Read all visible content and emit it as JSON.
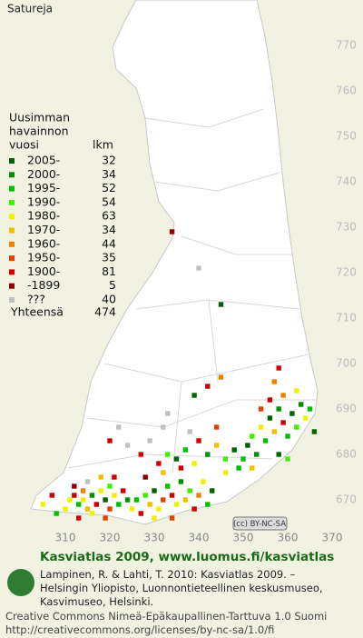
{
  "title": "Satureja",
  "legend": {
    "heading": [
      "Uusimman",
      "havainnon"
    ],
    "col_year": "vuosi",
    "col_count": "lkm",
    "rows": [
      {
        "label": "2005-",
        "count": 32,
        "color": "#006400"
      },
      {
        "label": "2000-",
        "count": 34,
        "color": "#009000"
      },
      {
        "label": "1995-",
        "count": 52,
        "color": "#00c000"
      },
      {
        "label": "1990-",
        "count": 54,
        "color": "#40f000"
      },
      {
        "label": "1980-",
        "count": 63,
        "color": "#f0f000"
      },
      {
        "label": "1970-",
        "count": 34,
        "color": "#f0c000"
      },
      {
        "label": "1960-",
        "count": 44,
        "color": "#f08000"
      },
      {
        "label": "1950-",
        "count": 35,
        "color": "#e04000"
      },
      {
        "label": "1900-",
        "count": 81,
        "color": "#d00000"
      },
      {
        "label": "-1899",
        "count": 5,
        "color": "#900000"
      },
      {
        "label": "???",
        "count": 40,
        "color": "#c0c0c0"
      }
    ],
    "total_label": "Yhteensä",
    "total": 474
  },
  "xticks": [
    310,
    320,
    330,
    340,
    350,
    360,
    370
  ],
  "yticks": [
    770,
    760,
    750,
    740,
    730,
    720,
    710,
    700,
    690,
    680,
    670
  ],
  "squares": [
    [
      305,
      669,
      4
    ],
    [
      307,
      671,
      8
    ],
    [
      308,
      667,
      2
    ],
    [
      310,
      668,
      4
    ],
    [
      311,
      670,
      4
    ],
    [
      312,
      671,
      8
    ],
    [
      313,
      669,
      2
    ],
    [
      314,
      670,
      4
    ],
    [
      314,
      672,
      6
    ],
    [
      315,
      668,
      5
    ],
    [
      316,
      671,
      1
    ],
    [
      317,
      669,
      8
    ],
    [
      318,
      672,
      4
    ],
    [
      319,
      670,
      0
    ],
    [
      320,
      668,
      7
    ],
    [
      320,
      673,
      3
    ],
    [
      321,
      671,
      4
    ],
    [
      322,
      669,
      2
    ],
    [
      323,
      672,
      8
    ],
    [
      312,
      673,
      9
    ],
    [
      315,
      674,
      10
    ],
    [
      318,
      675,
      5
    ],
    [
      321,
      675,
      8
    ],
    [
      316,
      667,
      4
    ],
    [
      319,
      666,
      7
    ],
    [
      324,
      670,
      1
    ],
    [
      313,
      666,
      8
    ],
    [
      325,
      668,
      4
    ],
    [
      326,
      670,
      2
    ],
    [
      327,
      667,
      8
    ],
    [
      328,
      671,
      3
    ],
    [
      329,
      669,
      5
    ],
    [
      330,
      672,
      0
    ],
    [
      331,
      668,
      4
    ],
    [
      332,
      670,
      7
    ],
    [
      333,
      673,
      2
    ],
    [
      334,
      671,
      8
    ],
    [
      335,
      669,
      4
    ],
    [
      336,
      674,
      1
    ],
    [
      337,
      670,
      5
    ],
    [
      338,
      672,
      3
    ],
    [
      339,
      668,
      8
    ],
    [
      340,
      671,
      6
    ],
    [
      341,
      674,
      4
    ],
    [
      342,
      669,
      2
    ],
    [
      343,
      672,
      0
    ],
    [
      328,
      675,
      9
    ],
    [
      332,
      676,
      5
    ],
    [
      336,
      677,
      8
    ],
    [
      330,
      666,
      4
    ],
    [
      334,
      666,
      7
    ],
    [
      331,
      678,
      8
    ],
    [
      333,
      680,
      3
    ],
    [
      335,
      679,
      0
    ],
    [
      337,
      681,
      2
    ],
    [
      339,
      678,
      4
    ],
    [
      340,
      683,
      8
    ],
    [
      342,
      680,
      1
    ],
    [
      344,
      682,
      5
    ],
    [
      346,
      679,
      3
    ],
    [
      348,
      681,
      0
    ],
    [
      338,
      685,
      10
    ],
    [
      344,
      686,
      7
    ],
    [
      346,
      676,
      4
    ],
    [
      349,
      677,
      2
    ],
    [
      327,
      680,
      8
    ],
    [
      324,
      682,
      10
    ],
    [
      329,
      683,
      10
    ],
    [
      322,
      686,
      10
    ],
    [
      350,
      679,
      2
    ],
    [
      351,
      682,
      0
    ],
    [
      352,
      684,
      3
    ],
    [
      353,
      680,
      1
    ],
    [
      354,
      686,
      4
    ],
    [
      355,
      683,
      2
    ],
    [
      356,
      688,
      0
    ],
    [
      357,
      685,
      5
    ],
    [
      358,
      690,
      1
    ],
    [
      359,
      687,
      8
    ],
    [
      360,
      684,
      2
    ],
    [
      361,
      689,
      0
    ],
    [
      362,
      686,
      3
    ],
    [
      363,
      691,
      1
    ],
    [
      364,
      688,
      4
    ],
    [
      365,
      690,
      2
    ],
    [
      358,
      680,
      0
    ],
    [
      360,
      679,
      3
    ],
    [
      356,
      692,
      8
    ],
    [
      359,
      693,
      6
    ],
    [
      362,
      694,
      4
    ],
    [
      366,
      685,
      0
    ],
    [
      354,
      690,
      7
    ],
    [
      352,
      677,
      5
    ],
    [
      357,
      696,
      6
    ],
    [
      358,
      699,
      8
    ],
    [
      334,
      729,
      9
    ],
    [
      340,
      721,
      10
    ],
    [
      345,
      713,
      0
    ],
    [
      345,
      697,
      6
    ],
    [
      342,
      695,
      8
    ],
    [
      339,
      693,
      0
    ],
    [
      333,
      689,
      10
    ],
    [
      332,
      686,
      10
    ],
    [
      320,
      683,
      8
    ]
  ],
  "license_badge": "(cc) BY-NC-SA",
  "footer": {
    "site": "Kasviatlas 2009, www.luomus.fi/kasviatlas",
    "citation": [
      "Lampinen, R. & Lahti, T. 2010: Kasviatlas 2009. –",
      "Helsingin Yliopisto, Luonnontieteellinen keskusmuseo,",
      "Kasvimuseo, Helsinki."
    ],
    "license": [
      "Creative Commons Nimeä-Epäkaupallinen-Tarttuva 1.0 Suomi",
      "http://creativecommons.org/licenses/by-nc-sa/1.0/fi"
    ]
  }
}
